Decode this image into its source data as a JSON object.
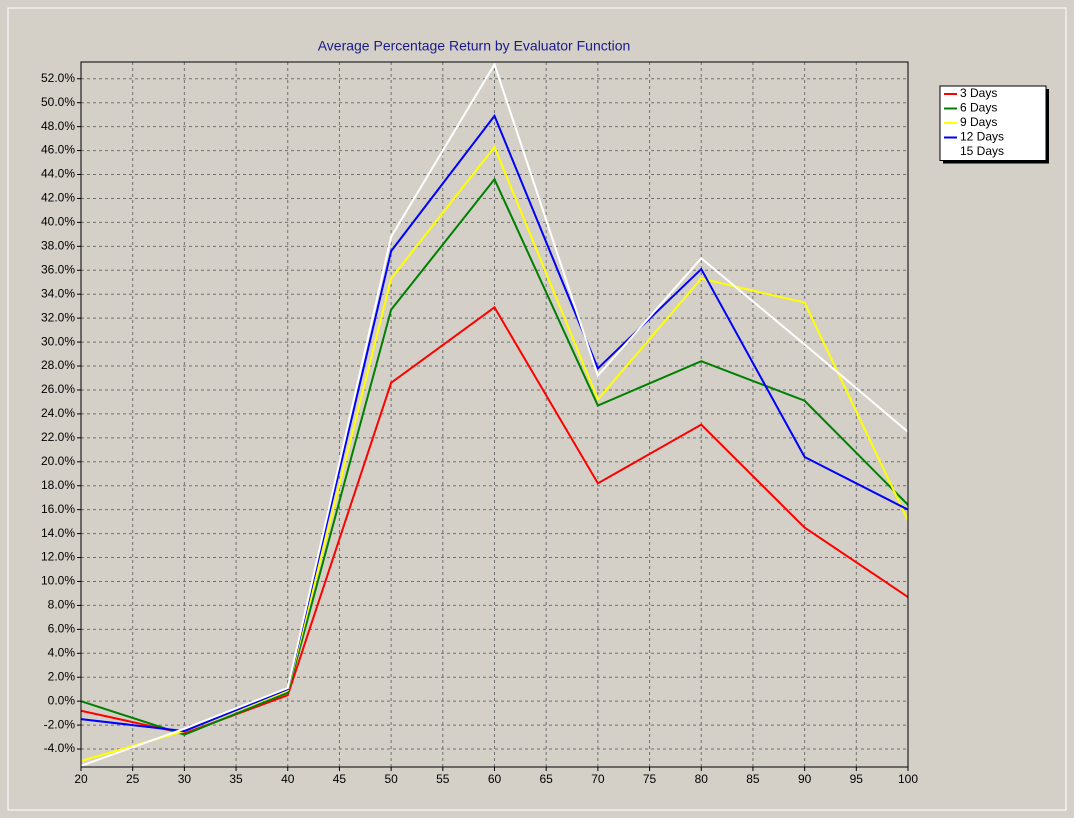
{
  "chart_data": {
    "type": "line",
    "title": "Average Percentage Return by Evaluator Function",
    "x": [
      20,
      30,
      40,
      50,
      60,
      70,
      80,
      90,
      100
    ],
    "xlim": [
      20,
      100
    ],
    "xticks": [
      20,
      25,
      30,
      35,
      40,
      45,
      50,
      55,
      60,
      65,
      70,
      75,
      80,
      85,
      90,
      95,
      100
    ],
    "ylim": [
      -5.5,
      53.4
    ],
    "yticks": [
      {
        "value": -4,
        "label": "-4.0%"
      },
      {
        "value": -2,
        "label": "-2.0%"
      },
      {
        "value": 0,
        "label": "0.0%"
      },
      {
        "value": 2,
        "label": "2.0%"
      },
      {
        "value": 4,
        "label": "4.0%"
      },
      {
        "value": 6,
        "label": "6.0%"
      },
      {
        "value": 8,
        "label": "8.0%"
      },
      {
        "value": 10,
        "label": "10.0%"
      },
      {
        "value": 12,
        "label": "12.0%"
      },
      {
        "value": 14,
        "label": "14.0%"
      },
      {
        "value": 16,
        "label": "16.0%"
      },
      {
        "value": 18,
        "label": "18.0%"
      },
      {
        "value": 20,
        "label": "20.0%"
      },
      {
        "value": 22,
        "label": "22.0%"
      },
      {
        "value": 24,
        "label": "24.0%"
      },
      {
        "value": 26,
        "label": "26.0%"
      },
      {
        "value": 28,
        "label": "28.0%"
      },
      {
        "value": 30,
        "label": "30.0%"
      },
      {
        "value": 32,
        "label": "32.0%"
      },
      {
        "value": 34,
        "label": "34.0%"
      },
      {
        "value": 36,
        "label": "36.0%"
      },
      {
        "value": 38,
        "label": "38.0%"
      },
      {
        "value": 40,
        "label": "40.0%"
      },
      {
        "value": 42,
        "label": "42.0%"
      },
      {
        "value": 44,
        "label": "44.0%"
      },
      {
        "value": 46,
        "label": "46.0%"
      },
      {
        "value": 48,
        "label": "48.0%"
      },
      {
        "value": 50,
        "label": "50.0%"
      },
      {
        "value": 52,
        "label": "52.0%"
      }
    ],
    "grid": true,
    "legend": "right",
    "series": [
      {
        "name": "3 Days",
        "color": "#ff0000",
        "values": [
          -0.8,
          -2.7,
          0.5,
          26.6,
          32.9,
          18.2,
          23.1,
          14.5,
          8.7
        ]
      },
      {
        "name": "6 Days",
        "color": "#008000",
        "values": [
          0.0,
          -2.8,
          0.7,
          32.7,
          43.6,
          24.7,
          28.4,
          25.1,
          16.4
        ]
      },
      {
        "name": "9 Days",
        "color": "#ffff00",
        "values": [
          -5.0,
          -2.5,
          0.9,
          35.3,
          46.3,
          25.2,
          35.3,
          33.3,
          15.1
        ]
      },
      {
        "name": "12 Days",
        "color": "#0000ff",
        "values": [
          -1.5,
          -2.5,
          1.0,
          37.6,
          48.9,
          27.8,
          36.1,
          20.4,
          16.0
        ]
      },
      {
        "name": "15 Days",
        "color": "#ffffff",
        "values": [
          -5.4,
          -2.3,
          1.1,
          38.8,
          53.2,
          27.2,
          37.0,
          29.8,
          22.5
        ]
      }
    ]
  }
}
